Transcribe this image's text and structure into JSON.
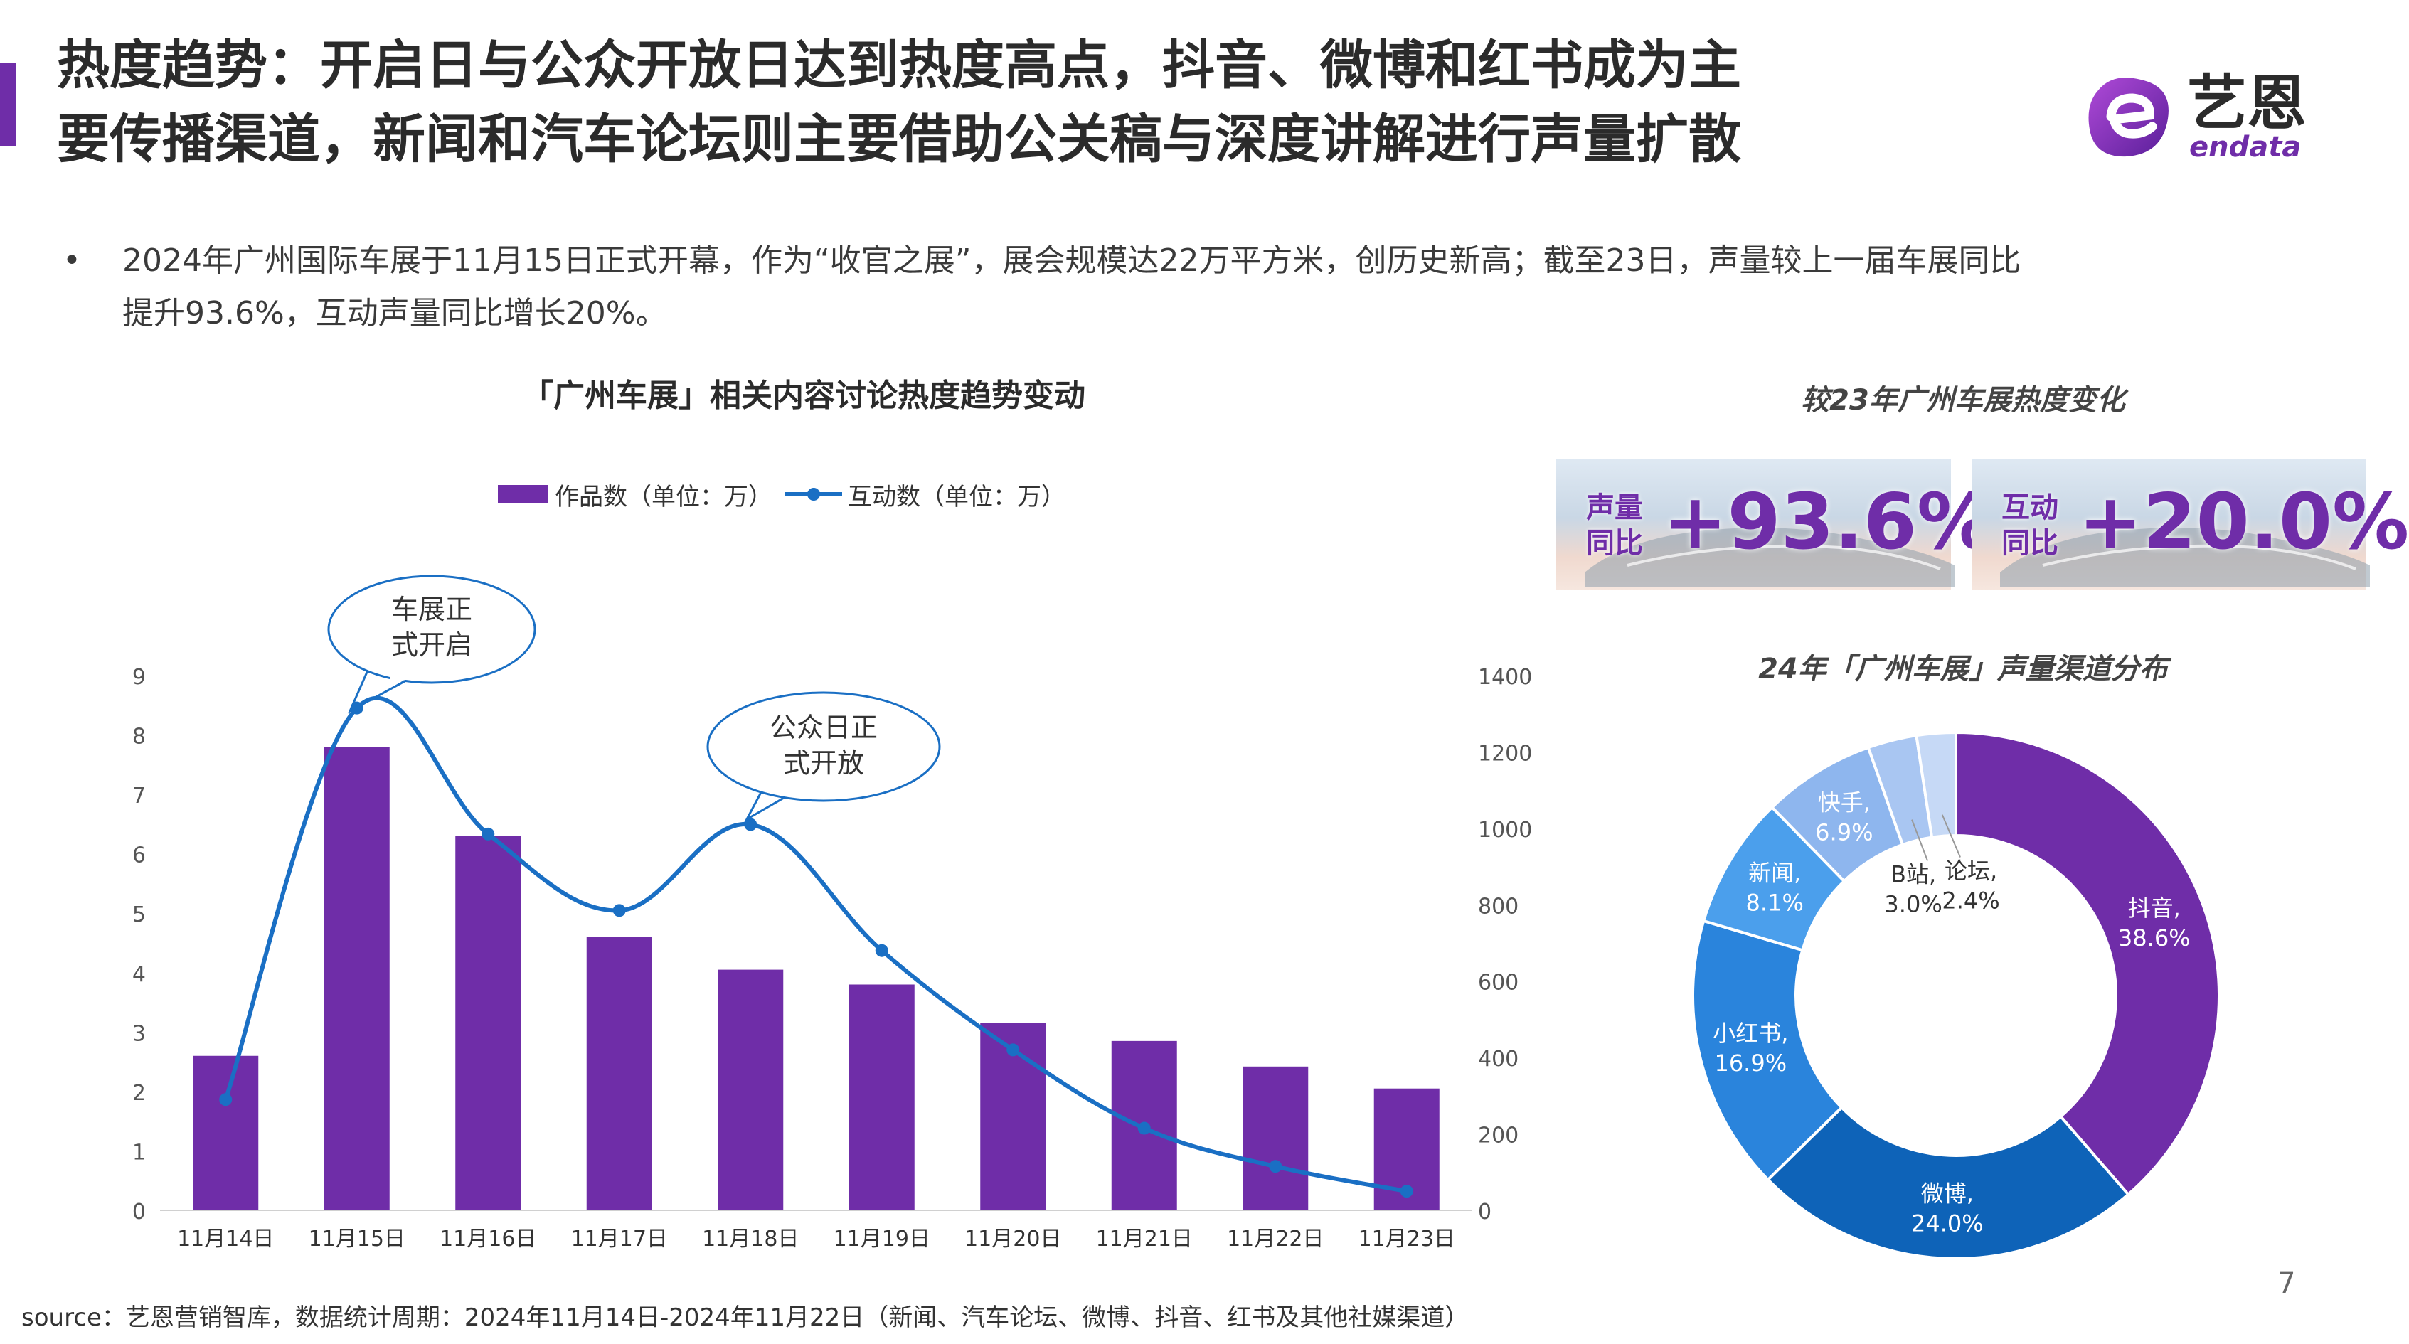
{
  "header": {
    "title_line1": "热度趋势：开启日与公众开放日达到热度高点，抖音、微博和红书成为主",
    "title_line2": "要传播渠道，新闻和汽车论坛则主要借助公关稿与深度讲解进行声量扩散"
  },
  "logo": {
    "cn": "艺恩",
    "en": "endata"
  },
  "bullet": {
    "marker": "•",
    "line1": "2024年广州国际车展于11月15日正式开幕，作为“收官之展”，展会规模达22万平方米，创历史新高；截至23日，声量较上一届车展同比",
    "line2": "提升93.6%，互动声量同比增长20%。"
  },
  "left_chart_title": "「广州车展」相关内容讨论热度趋势变动",
  "legend": {
    "bar": "作品数（单位：万）",
    "line": "互动数（单位：万）"
  },
  "callouts": {
    "open_day": "车展正式开启",
    "public_day": "公众日正式开放"
  },
  "right_top_title": "较23年广州车展热度变化",
  "cards": [
    {
      "label_line1": "声量",
      "label_line2": "同比",
      "value": "+93.6%"
    },
    {
      "label_line1": "互动",
      "label_line2": "同比",
      "value": "+20.0%"
    }
  ],
  "donut_title": "24年「广州车展」声量渠道分布",
  "source": "source：艺恩营销智库，数据统计周期：2024年11月14日-2024年11月22日（新闻、汽车论坛、微博、抖音、红书及其他社媒渠道）",
  "page_number": "7",
  "colors": {
    "accent": "#6f2da8",
    "line": "#1a6fc4"
  },
  "chart_data": [
    {
      "type": "bar+line",
      "title": "「广州车展」相关内容讨论热度趋势变动",
      "categories": [
        "11月14日",
        "11月15日",
        "11月16日",
        "11月17日",
        "11月18日",
        "11月19日",
        "11月20日",
        "11月21日",
        "11月22日",
        "11月23日"
      ],
      "series": [
        {
          "name": "作品数（单位：万）",
          "type": "bar",
          "axis": "left",
          "color": "#6f2da8",
          "values": [
            2.6,
            7.8,
            6.3,
            4.6,
            4.05,
            3.8,
            3.15,
            2.85,
            2.42,
            2.05
          ]
        },
        {
          "name": "互动数（单位：万）",
          "type": "line",
          "axis": "right",
          "color": "#1a6fc4",
          "values": [
            290,
            1315,
            985,
            785,
            1010,
            680,
            420,
            215,
            115,
            50
          ]
        }
      ],
      "y_left": {
        "min": 0,
        "max": 9,
        "ticks": [
          "0",
          "1",
          "2",
          "3",
          "4",
          "5",
          "6",
          "7",
          "8",
          "9"
        ]
      },
      "y_right": {
        "min": 0,
        "max": 1400,
        "ticks": [
          "0",
          "200",
          "400",
          "600",
          "800",
          "1000",
          "1200",
          "1400"
        ]
      },
      "grid": false,
      "legend_position": "top"
    },
    {
      "type": "pie",
      "title": "24年「广州车展」声量渠道分布",
      "donut": true,
      "slices": [
        {
          "name": "抖音",
          "value": 38.6,
          "label": "38.6%",
          "color": "#6f2da8"
        },
        {
          "name": "微博",
          "value": 24.0,
          "label": "24.0%",
          "color": "#0e63b8"
        },
        {
          "name": "小红书",
          "value": 16.9,
          "label": "16.9%",
          "color": "#2a84dc"
        },
        {
          "name": "新闻",
          "value": 8.1,
          "label": "8.1%",
          "color": "#4b9fec"
        },
        {
          "name": "快手",
          "value": 6.9,
          "label": "6.9%",
          "color": "#8eb6ee"
        },
        {
          "name": "B站",
          "value": 3.0,
          "label": "3.0%",
          "color": "#a9c6f2"
        },
        {
          "name": "论坛",
          "value": 2.4,
          "label": "2.4%",
          "color": "#c6d9f6"
        }
      ]
    }
  ]
}
